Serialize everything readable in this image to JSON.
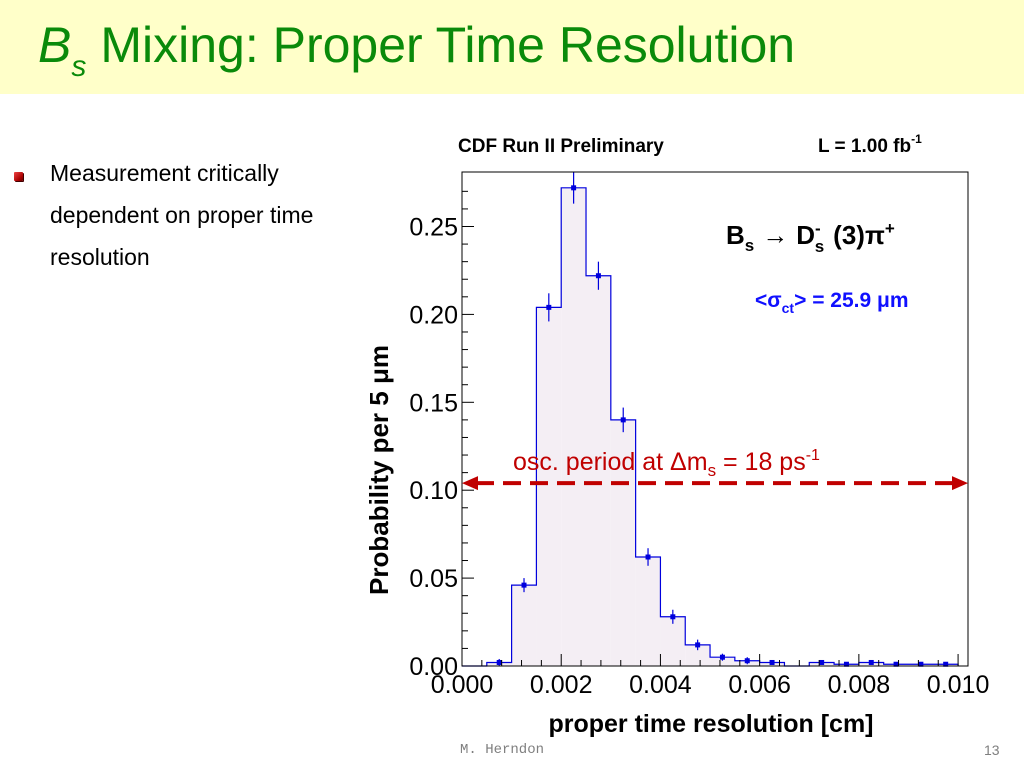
{
  "slide": {
    "title_b": "B",
    "title_sub": "s",
    "title_rest": "Mixing: Proper Time Resolution",
    "bullets": [
      "Measurement critically dependent on proper time resolution"
    ],
    "footer_author": "M. Herndon",
    "page_number": "13"
  },
  "colors": {
    "title": "#0a8a0a",
    "title_band": "#ffffc9",
    "histogram": "#0000dd",
    "hist_fill": "#f4eef4",
    "annotation_red": "#c00000",
    "sigma_blue": "#1010ff"
  },
  "chart_data": {
    "type": "bar",
    "header_left": "CDF Run II Preliminary",
    "header_right": "L = 1.00 fb",
    "header_right_sup": "-1",
    "xlabel": "proper time resolution [cm]",
    "ylabel": "Probability per 5 μm",
    "xlim": [
      0.0,
      0.0102
    ],
    "ylim": [
      0.0,
      0.281
    ],
    "x_tick_labels": [
      "0.000",
      "0.002",
      "0.004",
      "0.006",
      "0.008",
      "0.010"
    ],
    "x_ticks": [
      0.0,
      0.002,
      0.004,
      0.006,
      0.008,
      0.01
    ],
    "y_tick_labels": [
      "0.00",
      "0.05",
      "0.10",
      "0.15",
      "0.20",
      "0.25"
    ],
    "y_ticks": [
      0.0,
      0.05,
      0.1,
      0.15,
      0.2,
      0.25
    ],
    "bin_width": 0.0005,
    "bin_starts": [
      0.0,
      0.0005,
      0.001,
      0.0015,
      0.002,
      0.0025,
      0.003,
      0.0035,
      0.004,
      0.0045,
      0.005,
      0.0055,
      0.006,
      0.0065,
      0.007,
      0.0075,
      0.008,
      0.0085,
      0.009,
      0.0095
    ],
    "values": [
      0.0,
      0.002,
      0.046,
      0.204,
      0.272,
      0.222,
      0.14,
      0.062,
      0.028,
      0.012,
      0.005,
      0.003,
      0.002,
      0.0,
      0.002,
      0.001,
      0.002,
      0.001,
      0.001,
      0.001
    ],
    "errors": [
      0.0,
      0.002,
      0.004,
      0.008,
      0.009,
      0.008,
      0.007,
      0.005,
      0.004,
      0.003,
      0.002,
      0.002,
      0.001,
      0.0,
      0.001,
      0.001,
      0.001,
      0.001,
      0.001,
      0.001
    ],
    "decay_label": {
      "b": "B",
      "b_sub": "s",
      "arrow": "→",
      "d": "D",
      "d_sup": "-",
      "d_sub": "s",
      "rest": "(3)π",
      "rest_sup": "+"
    },
    "sigma_label": {
      "open": "<σ",
      "sub": "ct",
      "close": "> = 25.9 μm"
    },
    "osc_label": {
      "text": "osc. period at Δm",
      "sub": "s",
      "rest": " = 18 ps",
      "sup": "-1"
    },
    "osc_period_line": {
      "y": 0.104,
      "x_from": 0.0,
      "x_to": 0.0102
    }
  }
}
